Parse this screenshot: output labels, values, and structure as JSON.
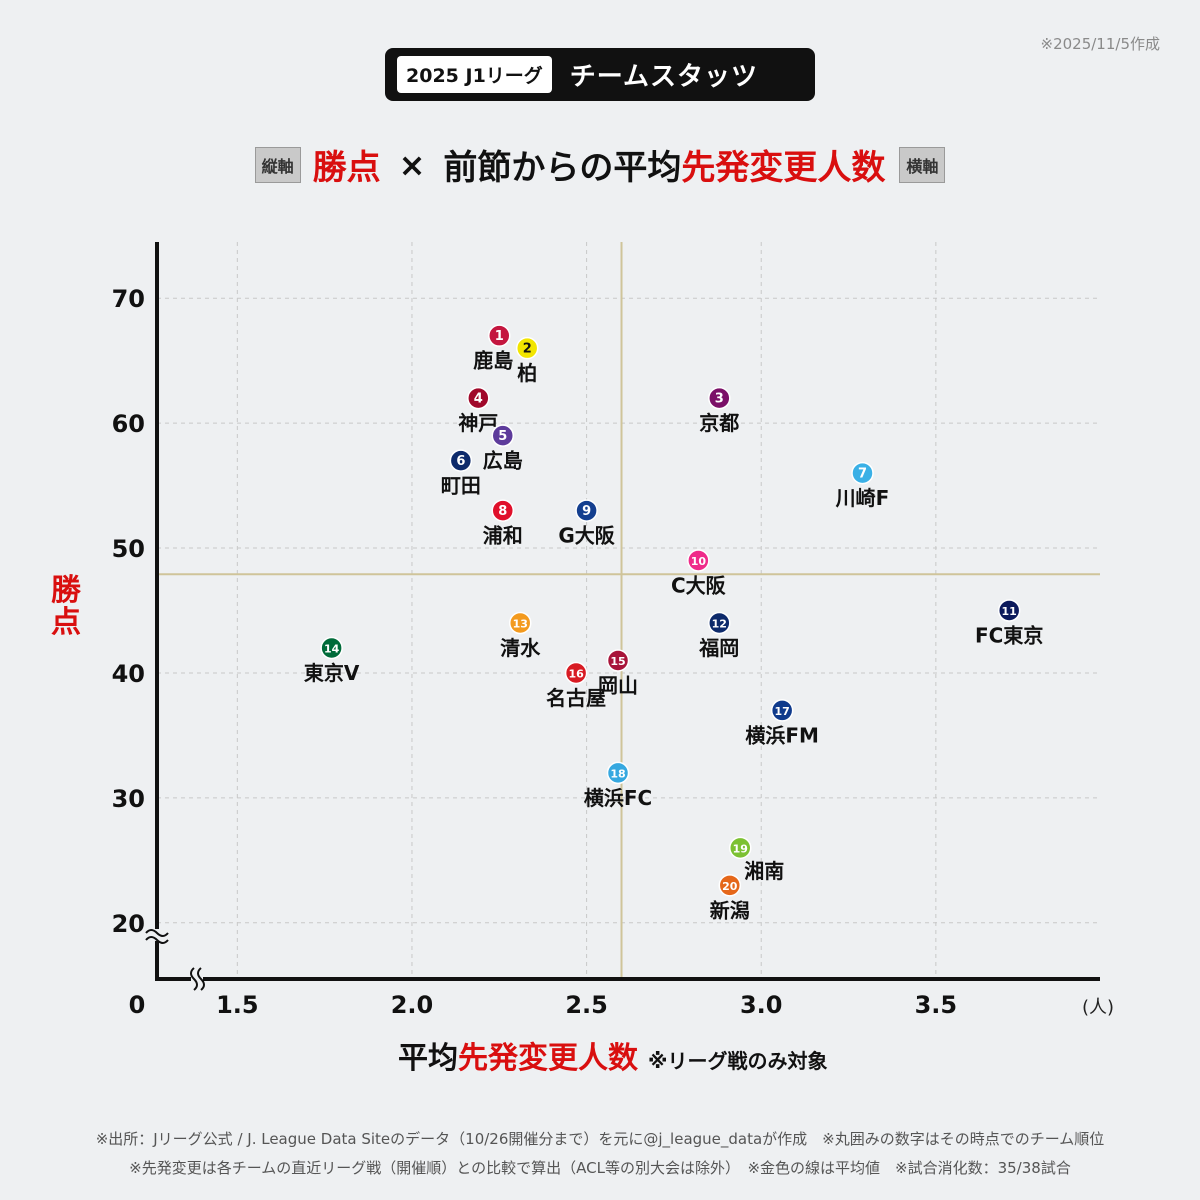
{
  "date_note": "※2025/11/5作成",
  "badge": {
    "label": "2025 J1リーグ",
    "title": "チームスタッツ"
  },
  "headline": {
    "y_tag": "縦軸",
    "y_metric": "勝点",
    "x_mark": "×",
    "x_prefix": "前節からの平均",
    "x_metric": "先発変更人数",
    "x_tag": "横軸"
  },
  "colors": {
    "accent_red": "#d90f0f",
    "mean_line": "#cfc49a",
    "axis": "#111111",
    "grid": "#c8c8c8"
  },
  "chart_data": {
    "type": "scatter",
    "xlabel_prefix": "平均",
    "xlabel_main": "先発変更人数",
    "xlabel_note": "※リーグ戦のみ対象",
    "ylabel": "勝点",
    "x_unit": "(人)",
    "origin_label": "0",
    "axis_break": true,
    "grid": true,
    "xlim": [
      1.27,
      3.97
    ],
    "ylim": [
      15.5,
      74.5
    ],
    "x_ticks": [
      1.5,
      2.0,
      2.5,
      3.0,
      3.5
    ],
    "x_tick_labels": [
      "1.5",
      "2.0",
      "2.5",
      "3.0",
      "3.5"
    ],
    "y_ticks": [
      20,
      30,
      40,
      50,
      60,
      70
    ],
    "y_tick_labels": [
      "20",
      "30",
      "40",
      "50",
      "60",
      "70"
    ],
    "mean_x": 2.6,
    "mean_y": 47.9,
    "points": [
      {
        "rank": "1",
        "team": "鹿島",
        "x": 2.25,
        "y": 67,
        "color": "#c4163f",
        "lp": "bl"
      },
      {
        "rank": "2",
        "team": "柏",
        "x": 2.33,
        "y": 66,
        "color": "#f2e500",
        "lp": "b"
      },
      {
        "rank": "3",
        "team": "京都",
        "x": 2.88,
        "y": 62,
        "color": "#7b1068",
        "lp": "b"
      },
      {
        "rank": "4",
        "team": "神戸",
        "x": 2.19,
        "y": 62,
        "color": "#a0082a",
        "lp": "b"
      },
      {
        "rank": "5",
        "team": "広島",
        "x": 2.26,
        "y": 59,
        "color": "#5d3b9b",
        "lp": "b"
      },
      {
        "rank": "6",
        "team": "町田",
        "x": 2.14,
        "y": 57,
        "color": "#0d2a6b",
        "lp": "b"
      },
      {
        "rank": "7",
        "team": "川崎F",
        "x": 3.29,
        "y": 56,
        "color": "#3ab0e6",
        "lp": "b"
      },
      {
        "rank": "8",
        "team": "浦和",
        "x": 2.26,
        "y": 53,
        "color": "#e0102b",
        "lp": "b"
      },
      {
        "rank": "9",
        "team": "G大阪",
        "x": 2.5,
        "y": 53,
        "color": "#143f8f",
        "lp": "b"
      },
      {
        "rank": "10",
        "team": "C大阪",
        "x": 2.82,
        "y": 49,
        "color": "#ef2b8a",
        "lp": "b"
      },
      {
        "rank": "11",
        "team": "FC東京",
        "x": 3.71,
        "y": 45,
        "color": "#0c1a5c",
        "lp": "b"
      },
      {
        "rank": "12",
        "team": "福岡",
        "x": 2.88,
        "y": 44,
        "color": "#0d2a6b",
        "lp": "b"
      },
      {
        "rank": "13",
        "team": "清水",
        "x": 2.31,
        "y": 44,
        "color": "#f39a1e",
        "lp": "b"
      },
      {
        "rank": "14",
        "team": "東京V",
        "x": 1.77,
        "y": 42,
        "color": "#006b3a",
        "lp": "b"
      },
      {
        "rank": "15",
        "team": "岡山",
        "x": 2.59,
        "y": 41,
        "color": "#a8143a",
        "lp": "b"
      },
      {
        "rank": "16",
        "team": "名古屋",
        "x": 2.47,
        "y": 40,
        "color": "#d81b23",
        "lp": "b"
      },
      {
        "rank": "17",
        "team": "横浜FM",
        "x": 3.06,
        "y": 37,
        "color": "#0f3a8c",
        "lp": "b"
      },
      {
        "rank": "18",
        "team": "横浜FC",
        "x": 2.59,
        "y": 32,
        "color": "#36a8e0",
        "lp": "b"
      },
      {
        "rank": "19",
        "team": "湘南",
        "x": 2.94,
        "y": 26,
        "color": "#7cc133",
        "lp": "br"
      },
      {
        "rank": "20",
        "team": "新潟",
        "x": 2.91,
        "y": 23,
        "color": "#e5671a",
        "lp": "b"
      }
    ]
  },
  "footer": {
    "line1": "※出所：Jリーグ公式 / J. League Data Siteのデータ（10/26開催分まで）を元に@j_league_dataが作成　※丸囲みの数字はその時点でのチーム順位",
    "line2": "※先発変更は各チームの直近リーグ戦（開催順）との比較で算出（ACL等の別大会は除外）　※金色の線は平均値　※試合消化数：35/38試合"
  }
}
